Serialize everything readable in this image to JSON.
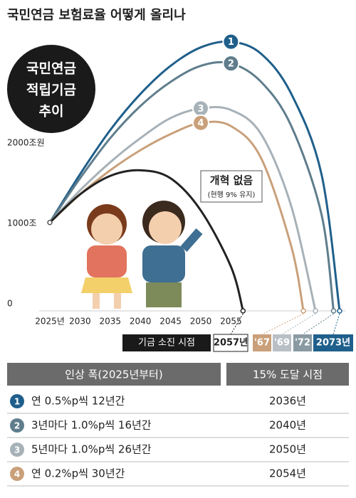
{
  "title": "국민연금 보험료율 어떻게 올리나",
  "badge": [
    "국민연금",
    "적립기금",
    "추이"
  ],
  "chart_data": {
    "type": "line",
    "xlim": [
      2025,
      2073
    ],
    "ylim": [
      0,
      3400
    ],
    "xticks": [
      {
        "value": 2025,
        "label": "2025년"
      },
      2030,
      2035,
      2040,
      2045,
      2050,
      2055
    ],
    "yticks": [
      0,
      {
        "value": 1000,
        "label": "1000조"
      },
      {
        "value": 2000,
        "label": "2000조원"
      }
    ],
    "grid": false,
    "depletion_label": "기금 소진 시점",
    "series": [
      {
        "name": "1",
        "color": "#1f5f8b",
        "end_label": "2073년",
        "x": [
          2025,
          2030,
          2035,
          2040,
          2045,
          2050,
          2055,
          2060,
          2065,
          2070,
          2073
        ],
        "values": [
          1100,
          1700,
          2250,
          2700,
          3050,
          3280,
          3350,
          3200,
          2700,
          1700,
          0
        ]
      },
      {
        "name": "2",
        "color": "#5f7d8c",
        "end_label": "'72",
        "x": [
          2025,
          2030,
          2035,
          2040,
          2045,
          2050,
          2055,
          2060,
          2065,
          2070,
          2072
        ],
        "values": [
          1100,
          1650,
          2150,
          2550,
          2850,
          3050,
          3080,
          2850,
          2300,
          1200,
          0
        ]
      },
      {
        "name": "3",
        "color": "#a7b1b8",
        "end_label": "'69",
        "x": [
          2025,
          2030,
          2035,
          2040,
          2045,
          2050,
          2055,
          2060,
          2065,
          2069
        ],
        "values": [
          1100,
          1500,
          1850,
          2150,
          2400,
          2520,
          2500,
          2200,
          1300,
          0
        ]
      },
      {
        "name": "4",
        "color": "#c9a07a",
        "end_label": "'67",
        "x": [
          2025,
          2030,
          2035,
          2040,
          2045,
          2050,
          2055,
          2060,
          2065,
          2067
        ],
        "values": [
          1100,
          1450,
          1750,
          2000,
          2200,
          2340,
          2300,
          1900,
          800,
          0
        ]
      },
      {
        "name": "개혁 없음",
        "note": "(현행 9% 유지)",
        "color": "#222222",
        "end_label": "2057년",
        "x": [
          2025,
          2030,
          2035,
          2040,
          2045,
          2050,
          2055,
          2057
        ],
        "values": [
          1100,
          1450,
          1680,
          1750,
          1650,
          1250,
          550,
          0
        ]
      }
    ]
  },
  "table": {
    "header": [
      "인상 폭(2025년부터)",
      "15% 도달 시점"
    ],
    "rows": [
      [
        "1",
        "연 0.5%p씩 12년간",
        "2036년"
      ],
      [
        "2",
        "3년마다 1.0%p씩 16년간",
        "2040년"
      ],
      [
        "3",
        "5년마다 1.0%p씩 26년간",
        "2050년"
      ],
      [
        "4",
        "연 0.2%p씩 30년간",
        "2054년"
      ]
    ]
  }
}
